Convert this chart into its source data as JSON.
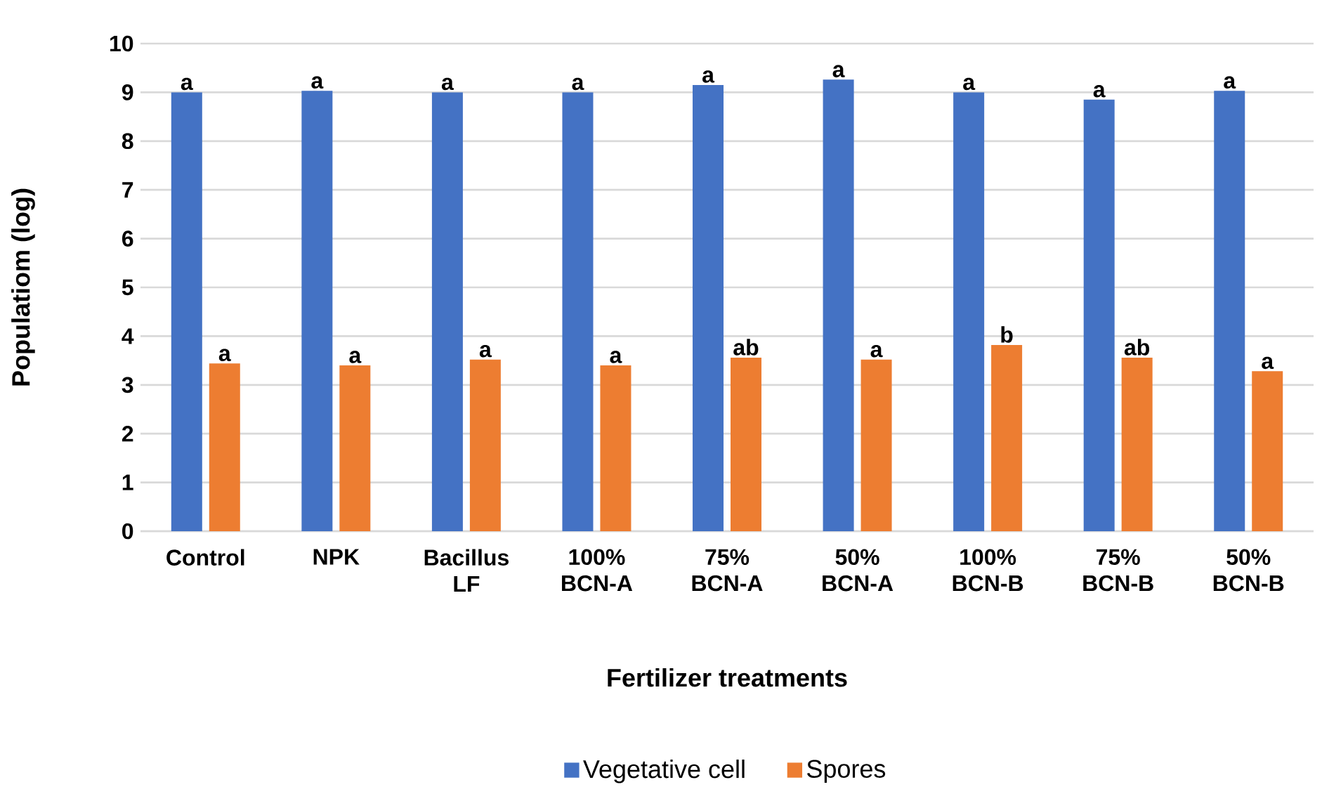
{
  "chart_data": {
    "type": "bar",
    "categories": [
      "Control",
      "NPK",
      "Bacillus LF",
      "100% BCN-A",
      "75% BCN-A",
      "50% BCN-A",
      "100% BCN-B",
      "75% BCN-B",
      "50% BCN-B"
    ],
    "series": [
      {
        "name": "Vegetative cell",
        "color": "#4472c4",
        "values": [
          9.0,
          9.03,
          9.0,
          9.0,
          9.15,
          9.26,
          9.0,
          8.85,
          9.03
        ]
      },
      {
        "name": "Spores",
        "color": "#ed7d31",
        "values": [
          3.44,
          3.4,
          3.52,
          3.4,
          3.56,
          3.52,
          3.82,
          3.56,
          3.28
        ]
      }
    ],
    "xlabel": "Fertilizer treatments",
    "ylabel": "Populatiom (log)",
    "ylim": [
      0,
      10
    ],
    "yticks": [
      0,
      1,
      2,
      3,
      4,
      5,
      6,
      7,
      8,
      9,
      10
    ],
    "grid": "y",
    "legend": "bottom",
    "annotations": [
      {
        "text": "a",
        "x": "Control",
        "y": 9.0
      },
      {
        "text": "a",
        "x": "NPK",
        "y": 9.03
      },
      {
        "text": "a",
        "x": "Bacillus LF",
        "y": 9.0
      },
      {
        "text": "a",
        "x": "100% BCN-A",
        "y": 9.0
      },
      {
        "text": "a",
        "x": "75% BCN-A",
        "y": 9.15
      },
      {
        "text": "a",
        "x": "50% BCN-A",
        "y": 9.26
      },
      {
        "text": "a",
        "x": "100% BCN-B",
        "y": 9.0
      },
      {
        "text": "a",
        "x": "75% BCN-B",
        "y": 8.85
      },
      {
        "text": "a",
        "x": "50% BCN-B",
        "y": 9.03
      },
      {
        "text": "a",
        "x": "Control",
        "y": 3.44
      },
      {
        "text": "a",
        "x": "NPK",
        "y": 3.4
      },
      {
        "text": "a",
        "x": "Bacillus LF",
        "y": 3.52
      },
      {
        "text": "a",
        "x": "100% BCN-A",
        "y": 3.4
      },
      {
        "text": "ab",
        "x": "75% BCN-A",
        "y": 3.56
      },
      {
        "text": "a",
        "x": "50% BCN-A",
        "y": 3.52
      },
      {
        "text": "b",
        "x": "100% BCN-B",
        "y": 3.82
      },
      {
        "text": "ab",
        "x": "75% BCN-B",
        "y": 3.56
      },
      {
        "text": "a",
        "x": "50% BCN-B",
        "y": 3.28
      }
    ]
  }
}
